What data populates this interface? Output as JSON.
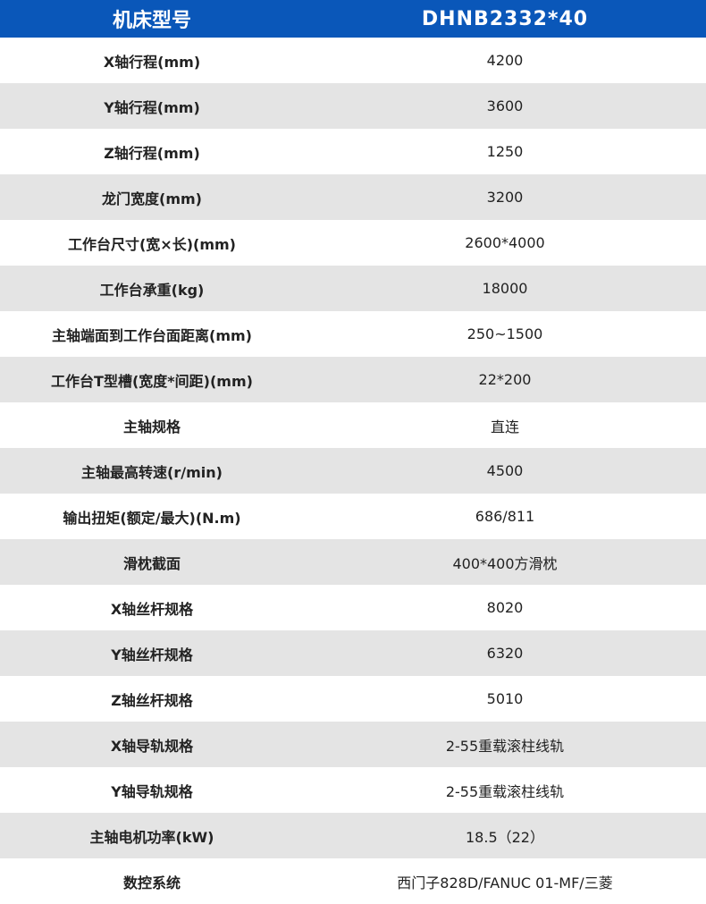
{
  "header": {
    "label": "机床型号",
    "model": "DHNB2332*40"
  },
  "colors": {
    "header_bg": "#0a57b9",
    "stripe": "#e4e4e4"
  },
  "rows": [
    {
      "label": "X轴行程(mm)",
      "value": "4200"
    },
    {
      "label": "Y轴行程(mm)",
      "value": "3600"
    },
    {
      "label": "Z轴行程(mm)",
      "value": "1250"
    },
    {
      "label": "龙门宽度(mm)",
      "value": "3200"
    },
    {
      "label": "工作台尺寸(宽×长)(mm)",
      "value": "2600*4000"
    },
    {
      "label": "工作台承重(kg)",
      "value": "18000"
    },
    {
      "label": "主轴端面到工作台面距离(mm)",
      "value": "250~1500"
    },
    {
      "label": "工作台T型槽(宽度*间距)(mm)",
      "value": "22*200"
    },
    {
      "label": "主轴规格",
      "value": "直连"
    },
    {
      "label": "主轴最高转速(r/min)",
      "value": "4500"
    },
    {
      "label": "输出扭矩(额定/最大)(N.m)",
      "value": "686/811"
    },
    {
      "label": "滑枕截面",
      "value": "400*400方滑枕"
    },
    {
      "label": "X轴丝杆规格",
      "value": "8020"
    },
    {
      "label": "Y轴丝杆规格",
      "value": "6320"
    },
    {
      "label": "Z轴丝杆规格",
      "value": "5010"
    },
    {
      "label": "X轴导轨规格",
      "value": "2-55重载滚柱线轨"
    },
    {
      "label": "Y轴导轨规格",
      "value": "2-55重载滚柱线轨"
    },
    {
      "label": "主轴电机功率(kW)",
      "value": "18.5（22）"
    },
    {
      "label": "数控系统",
      "value": "西门子828D/FANUC 01-MF/三菱"
    }
  ]
}
